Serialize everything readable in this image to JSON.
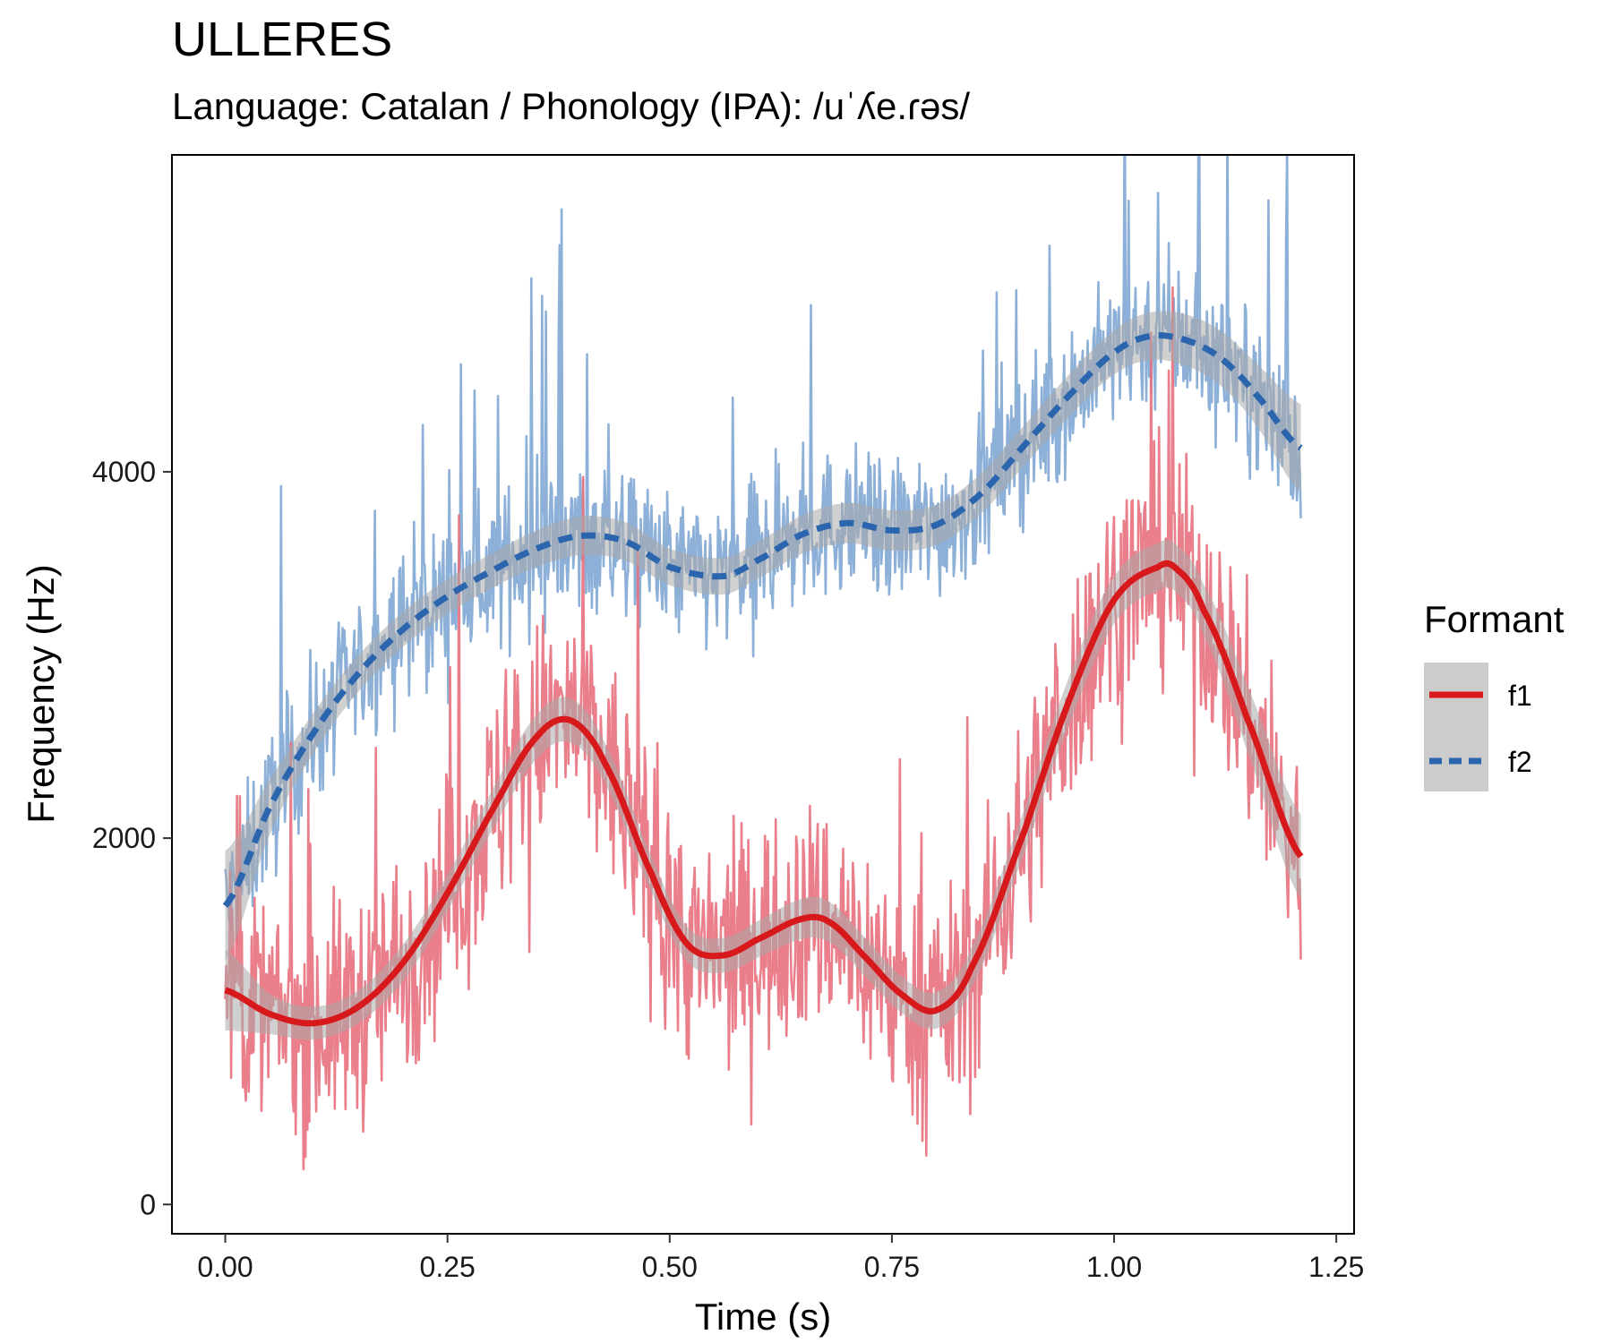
{
  "title": "ULLERES",
  "subtitle": "Language: Catalan / Phonology (IPA): /uˈʎe.ɾəs/",
  "colors": {
    "f1_raw": "#e8717e",
    "f1_smooth": "#d7191c",
    "f2_raw": "#7fa7d3",
    "f2_smooth": "#2b65ad",
    "ribbon": "#aaaaaa",
    "panel_border": "#000000"
  },
  "chart_data": {
    "type": "line",
    "xlabel": "Time (s)",
    "ylabel": "Frequency (Hz)",
    "xlim": [
      -0.06,
      1.27
    ],
    "ylim": [
      -160,
      5730
    ],
    "xticks": [
      0.0,
      0.25,
      0.5,
      0.75,
      1.0,
      1.25
    ],
    "xtick_labels": [
      "0.00",
      "0.25",
      "0.50",
      "0.75",
      "1.00",
      "1.25"
    ],
    "yticks": [
      0,
      2000,
      4000
    ],
    "ytick_labels": [
      "0",
      "2000",
      "4000"
    ],
    "grid": false,
    "legend": {
      "title": "Formant",
      "position": "right",
      "entries": [
        {
          "label": "f1",
          "style": "solid"
        },
        {
          "label": "f2",
          "style": "dashed"
        }
      ]
    },
    "series": [
      {
        "name": "f1",
        "kind": "smooth",
        "x": [
          0.0,
          0.05,
          0.1,
          0.15,
          0.2,
          0.25,
          0.3,
          0.35,
          0.39,
          0.43,
          0.48,
          0.52,
          0.56,
          0.6,
          0.65,
          0.68,
          0.72,
          0.76,
          0.8,
          0.84,
          0.9,
          0.95,
          1.0,
          1.05,
          1.07,
          1.1,
          1.15,
          1.21
        ],
        "values": [
          1170,
          1040,
          990,
          1080,
          1320,
          1700,
          2150,
          2550,
          2640,
          2380,
          1800,
          1420,
          1360,
          1450,
          1560,
          1540,
          1350,
          1150,
          1060,
          1300,
          2050,
          2760,
          3300,
          3480,
          3470,
          3250,
          2650,
          1900
        ],
        "ribbon_halfwidth": [
          220,
          110,
          90,
          90,
          100,
          100,
          110,
          120,
          120,
          110,
          100,
          95,
          95,
          100,
          110,
          110,
          105,
          100,
          100,
          110,
          120,
          130,
          130,
          130,
          130,
          140,
          180,
          230
        ]
      },
      {
        "name": "f2",
        "kind": "smooth",
        "x": [
          0.0,
          0.05,
          0.1,
          0.15,
          0.2,
          0.25,
          0.3,
          0.35,
          0.4,
          0.45,
          0.5,
          0.56,
          0.6,
          0.65,
          0.7,
          0.75,
          0.8,
          0.85,
          0.9,
          0.95,
          1.0,
          1.04,
          1.08,
          1.12,
          1.16,
          1.21
        ],
        "values": [
          1630,
          2170,
          2580,
          2900,
          3140,
          3320,
          3460,
          3580,
          3650,
          3620,
          3480,
          3430,
          3520,
          3660,
          3720,
          3680,
          3710,
          3880,
          4150,
          4420,
          4650,
          4740,
          4720,
          4620,
          4420,
          4130
        ],
        "ribbon_halfwidth": [
          300,
          150,
          110,
          100,
          95,
          95,
          95,
          100,
          105,
          105,
          100,
          100,
          100,
          105,
          110,
          110,
          110,
          110,
          110,
          115,
          120,
          130,
          140,
          150,
          170,
          240
        ]
      }
    ]
  }
}
